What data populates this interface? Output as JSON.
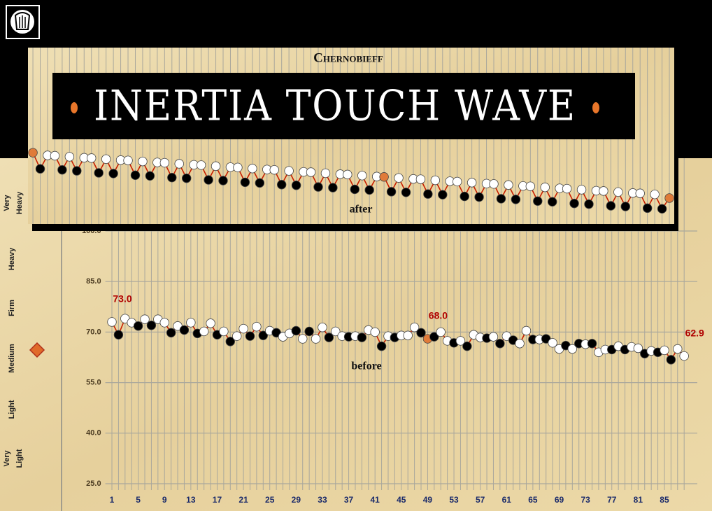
{
  "scale_labels": [
    [
      "Very",
      "Heavy"
    ],
    [
      "Heavy"
    ],
    [
      "Firm"
    ],
    [
      "Medium"
    ],
    [
      "Light"
    ],
    [
      "Very",
      "Light"
    ]
  ],
  "chart_data": [
    {
      "type": "line",
      "annotation": "before",
      "x": [
        1,
        2,
        3,
        4,
        5,
        6,
        7,
        8,
        9,
        10,
        11,
        12,
        13,
        14,
        15,
        16,
        17,
        18,
        19,
        20,
        21,
        22,
        23,
        24,
        25,
        26,
        27,
        28,
        29,
        30,
        31,
        32,
        33,
        34,
        35,
        36,
        37,
        38,
        39,
        40,
        41,
        42,
        43,
        44,
        45,
        46,
        47,
        48,
        49,
        50,
        51,
        52,
        53,
        54,
        55,
        56,
        57,
        58,
        59,
        60,
        61,
        62,
        63,
        64,
        65,
        66,
        67,
        68,
        69,
        70,
        71,
        72,
        73,
        74,
        75,
        76,
        77,
        78,
        79,
        80,
        81,
        82,
        83,
        84,
        85,
        86,
        87,
        88
      ],
      "xlim": [
        0,
        90
      ],
      "xticks": [
        1,
        5,
        9,
        13,
        17,
        21,
        25,
        29,
        33,
        37,
        41,
        45,
        49,
        53,
        57,
        61,
        65,
        69,
        73,
        77,
        81,
        85
      ],
      "ylim": [
        25,
        100
      ],
      "yticks": [
        {
          "value": 25,
          "label": "25.0"
        },
        {
          "value": 40,
          "label": "40.0"
        },
        {
          "value": 55,
          "label": "55.0"
        },
        {
          "value": 70,
          "label": "70.0"
        },
        {
          "value": 85,
          "label": "85.0"
        },
        {
          "value": 100,
          "label": "100.0"
        }
      ],
      "grid": true,
      "series": [
        {
          "color": "#c81e00",
          "values": [
            73.0,
            69.2,
            74.0,
            72.8,
            71.8,
            73.8,
            72.0,
            73.8,
            72.8,
            69.8,
            71.8,
            70.6,
            72.8,
            69.6,
            70.2,
            72.6,
            69.2,
            70.2,
            67.2,
            68.8,
            71.0,
            68.8,
            71.6,
            69.0,
            70.4,
            69.8,
            68.6,
            69.6,
            70.4,
            68.0,
            70.2,
            68.0,
            71.4,
            68.4,
            70.2,
            68.8,
            68.6,
            68.8,
            68.4,
            70.6,
            70.0,
            65.8,
            68.8,
            68.4,
            69.0,
            69.0,
            71.4,
            69.8,
            68.0,
            68.6,
            70.0,
            67.4,
            66.8,
            67.4,
            65.8,
            69.2,
            68.4,
            68.2,
            68.6,
            66.6,
            68.8,
            67.6,
            66.6,
            70.4,
            67.8,
            67.8,
            68.0,
            66.8,
            65.0,
            66.0,
            65.0,
            66.6,
            66.4,
            66.6,
            64.0,
            64.8,
            64.8,
            65.8,
            64.8,
            65.6,
            65.2,
            63.6,
            64.4,
            64.0,
            64.6,
            61.8,
            65.0,
            62.9
          ],
          "value_labels": [
            "73.0",
            null,
            null,
            null,
            null,
            null,
            null,
            null,
            null,
            null,
            null,
            null,
            null,
            null,
            null,
            null,
            null,
            null,
            null,
            null,
            null,
            null,
            null,
            null,
            null,
            null,
            null,
            null,
            null,
            null,
            null,
            null,
            null,
            null,
            null,
            null,
            null,
            null,
            null,
            null,
            null,
            null,
            null,
            null,
            null,
            null,
            null,
            null,
            "68.0",
            null,
            null,
            null,
            null,
            null,
            null,
            null,
            null,
            null,
            null,
            null,
            null,
            null,
            null,
            null,
            null,
            null,
            null,
            null,
            null,
            null,
            null,
            null,
            null,
            null,
            null,
            null,
            null,
            null,
            null,
            null,
            null,
            null,
            null,
            null,
            null,
            null,
            null,
            "62.9"
          ],
          "marker_colors": [
            "#ffffff",
            "#000000",
            "#ffffff",
            "#ffffff",
            "#000000",
            "#ffffff",
            "#000000",
            "#ffffff",
            "#ffffff",
            "#000000",
            "#ffffff",
            "#000000",
            "#ffffff",
            "#000000",
            "#ffffff",
            "#ffffff",
            "#000000",
            "#ffffff",
            "#000000",
            "#ffffff",
            "#ffffff",
            "#000000",
            "#ffffff",
            "#000000",
            "#ffffff",
            "#000000",
            "#ffffff",
            "#ffffff",
            "#000000",
            "#ffffff",
            "#000000",
            "#ffffff",
            "#ffffff",
            "#000000",
            "#ffffff",
            "#ffffff",
            "#000000",
            "#ffffff",
            "#000000",
            "#ffffff",
            "#ffffff",
            "#000000",
            "#ffffff",
            "#000000",
            "#ffffff",
            "#ffffff",
            "#ffffff",
            "#000000",
            "#e07b39",
            "#000000",
            "#ffffff",
            "#ffffff",
            "#000000",
            "#ffffff",
            "#000000",
            "#ffffff",
            "#ffffff",
            "#000000",
            "#ffffff",
            "#000000",
            "#ffffff",
            "#000000",
            "#ffffff",
            "#ffffff",
            "#000000",
            "#ffffff",
            "#000000",
            "#ffffff",
            "#ffffff",
            "#000000",
            "#ffffff",
            "#000000",
            "#ffffff",
            "#000000",
            "#ffffff",
            "#ffffff",
            "#000000",
            "#ffffff",
            "#000000",
            "#ffffff",
            "#ffffff",
            "#000000",
            "#ffffff",
            "#000000",
            "#ffffff",
            "#000000",
            "#ffffff",
            "#ffffff"
          ]
        }
      ]
    },
    {
      "type": "line",
      "title": "Chernobieff",
      "subtitle": "INERTIA TOUCH WAVE",
      "annotation": "after",
      "x": [
        1,
        2,
        3,
        4,
        5,
        6,
        7,
        8,
        9,
        10,
        11,
        12,
        13,
        14,
        15,
        16,
        17,
        18,
        19,
        20,
        21,
        22,
        23,
        24,
        25,
        26,
        27,
        28,
        29,
        30,
        31,
        32,
        33,
        34,
        35,
        36,
        37,
        38,
        39,
        40,
        41,
        42,
        43,
        44,
        45,
        46,
        47,
        48,
        49,
        50,
        51,
        52,
        53,
        54,
        55,
        56,
        57,
        58,
        59,
        60,
        61,
        62,
        63,
        64,
        65,
        66,
        67,
        68,
        69,
        70,
        71,
        72,
        73,
        74,
        75,
        76,
        77,
        78,
        79,
        80,
        81,
        82,
        83,
        84,
        85,
        86,
        87,
        88
      ],
      "xlim": [
        0,
        89
      ],
      "ylim": [
        100,
        130
      ],
      "grid": true,
      "series": [
        {
          "color": "#c81e00",
          "values": [
            123.3,
            118.5,
            122.5,
            122.4,
            118.2,
            122.1,
            117.9,
            121.8,
            121.7,
            117.3,
            121.4,
            117.1,
            121.1,
            121.0,
            116.6,
            120.7,
            116.4,
            120.4,
            120.3,
            115.9,
            120.0,
            115.7,
            119.7,
            119.6,
            115.2,
            119.3,
            115.0,
            119.0,
            118.9,
            114.5,
            118.6,
            114.3,
            118.3,
            118.2,
            113.8,
            117.9,
            113.6,
            117.6,
            117.5,
            113.1,
            117.2,
            112.9,
            116.9,
            116.8,
            112.4,
            116.5,
            112.2,
            116.2,
            116.1,
            111.7,
            115.8,
            111.5,
            115.5,
            115.4,
            111.0,
            115.1,
            110.8,
            114.8,
            114.7,
            110.3,
            114.4,
            110.1,
            114.1,
            114.0,
            109.6,
            113.7,
            109.4,
            113.4,
            113.3,
            108.9,
            113.0,
            108.7,
            112.7,
            112.6,
            108.2,
            112.3,
            108.0,
            112.0,
            111.9,
            107.5,
            111.6,
            107.3,
            111.3,
            111.2,
            106.8,
            110.9,
            106.6,
            109.8
          ],
          "marker_colors": [
            "#e07b39",
            "#000000",
            "#ffffff",
            "#ffffff",
            "#000000",
            "#ffffff",
            "#000000",
            "#ffffff",
            "#ffffff",
            "#000000",
            "#ffffff",
            "#000000",
            "#ffffff",
            "#ffffff",
            "#000000",
            "#ffffff",
            "#000000",
            "#ffffff",
            "#ffffff",
            "#000000",
            "#ffffff",
            "#000000",
            "#ffffff",
            "#ffffff",
            "#000000",
            "#ffffff",
            "#000000",
            "#ffffff",
            "#ffffff",
            "#000000",
            "#ffffff",
            "#000000",
            "#ffffff",
            "#ffffff",
            "#000000",
            "#ffffff",
            "#000000",
            "#ffffff",
            "#ffffff",
            "#000000",
            "#ffffff",
            "#000000",
            "#ffffff",
            "#ffffff",
            "#000000",
            "#ffffff",
            "#000000",
            "#ffffff",
            "#e07b39",
            "#000000",
            "#ffffff",
            "#000000",
            "#ffffff",
            "#ffffff",
            "#000000",
            "#ffffff",
            "#000000",
            "#ffffff",
            "#ffffff",
            "#000000",
            "#ffffff",
            "#000000",
            "#ffffff",
            "#ffffff",
            "#000000",
            "#ffffff",
            "#000000",
            "#ffffff",
            "#ffffff",
            "#000000",
            "#ffffff",
            "#000000",
            "#ffffff",
            "#ffffff",
            "#000000",
            "#ffffff",
            "#000000",
            "#ffffff",
            "#ffffff",
            "#000000",
            "#ffffff",
            "#000000",
            "#ffffff",
            "#ffffff",
            "#000000",
            "#ffffff",
            "#000000",
            "#e07b39"
          ]
        }
      ]
    }
  ]
}
